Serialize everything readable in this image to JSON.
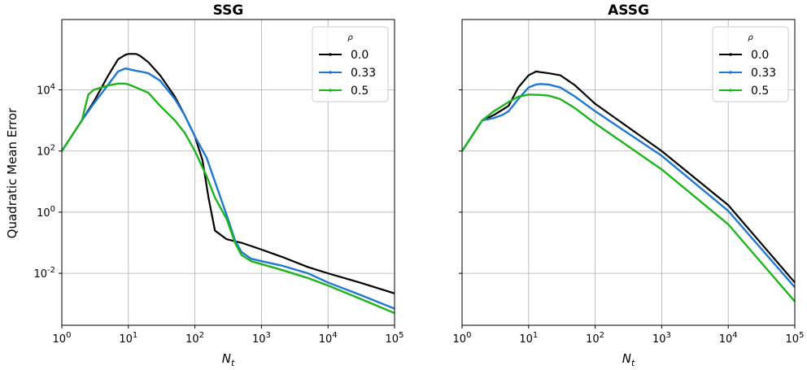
{
  "figure": {
    "ylabel": "Quadratic Mean Error",
    "xlabel": "N_t"
  },
  "colors": {
    "0.0": "#000000",
    "0.33": "#1f78d1",
    "0.5": "#1db51d"
  },
  "chart_data": [
    {
      "type": "line",
      "title": "SSG",
      "xlabel": "N_t",
      "ylabel": "Quadratic Mean Error",
      "xscale": "log",
      "yscale": "log",
      "xlim": [
        1,
        100000
      ],
      "ylim": [
        0.0002,
        2000000
      ],
      "x_ticks": [
        "10^0",
        "10^1",
        "10^2",
        "10^3",
        "10^4",
        "10^5"
      ],
      "y_ticks": [
        "10^-2",
        "10^0",
        "10^2",
        "10^4"
      ],
      "grid": true,
      "legend": {
        "title": "ρ",
        "position": "top-right"
      },
      "series": [
        {
          "name": "0.0",
          "x": [
            1,
            2,
            3,
            5,
            7,
            9,
            10,
            13,
            15,
            20,
            30,
            50,
            70,
            100,
            130,
            160,
            200,
            300,
            500,
            1000,
            2000,
            5000,
            10000,
            30000,
            100000
          ],
          "y": [
            100,
            1000,
            4000,
            30000,
            100000,
            140000,
            150000,
            150000,
            130000,
            80000,
            30000,
            6000,
            1500,
            300,
            50,
            3,
            0.25,
            0.13,
            0.1,
            0.06,
            0.035,
            0.016,
            0.01,
            0.005,
            0.0022
          ]
        },
        {
          "name": "0.33",
          "x": [
            1,
            2,
            3,
            5,
            7,
            9,
            10,
            13,
            15,
            20,
            30,
            50,
            70,
            100,
            150,
            200,
            300,
            400,
            500,
            700,
            1000,
            2000,
            5000,
            10000,
            30000,
            100000
          ],
          "y": [
            100,
            1000,
            3500,
            15000,
            40000,
            50000,
            48000,
            42000,
            40000,
            35000,
            20000,
            5000,
            1500,
            300,
            60,
            10,
            0.8,
            0.12,
            0.05,
            0.03,
            0.025,
            0.018,
            0.01,
            0.005,
            0.002,
            0.0007
          ]
        },
        {
          "name": "0.5",
          "x": [
            1,
            2,
            2.5,
            3,
            5,
            7,
            9,
            10,
            13,
            20,
            30,
            50,
            70,
            100,
            150,
            200,
            300,
            400,
            500,
            700,
            1000,
            2000,
            5000,
            10000,
            30000,
            100000
          ],
          "y": [
            100,
            1000,
            7000,
            10000,
            14000,
            16000,
            16000,
            15000,
            12000,
            8000,
            3000,
            1000,
            400,
            100,
            15,
            3,
            0.6,
            0.1,
            0.04,
            0.025,
            0.02,
            0.013,
            0.007,
            0.004,
            0.0015,
            0.0005
          ]
        }
      ]
    },
    {
      "type": "line",
      "title": "ASSG",
      "xlabel": "N_t",
      "ylabel": "",
      "xscale": "log",
      "yscale": "log",
      "xlim": [
        1,
        100000
      ],
      "ylim": [
        0.0002,
        2000000
      ],
      "x_ticks": [
        "10^0",
        "10^1",
        "10^2",
        "10^3",
        "10^4",
        "10^5"
      ],
      "y_ticks": [],
      "grid": true,
      "legend": {
        "title": "ρ",
        "position": "top-right"
      },
      "series": [
        {
          "name": "0.0",
          "x": [
            1,
            2,
            3,
            4,
            5,
            7,
            10,
            13,
            15,
            20,
            30,
            50,
            100,
            1000,
            10000,
            100000
          ],
          "y": [
            100,
            1000,
            1500,
            2200,
            3000,
            12000,
            30000,
            40000,
            38000,
            35000,
            30000,
            14000,
            3500,
            100,
            1.7,
            0.005
          ]
        },
        {
          "name": "0.33",
          "x": [
            1,
            2,
            3,
            4,
            5,
            7,
            10,
            13,
            15,
            20,
            30,
            50,
            100,
            1000,
            10000,
            100000
          ],
          "y": [
            100,
            1000,
            1200,
            1500,
            2000,
            5000,
            12000,
            15000,
            15500,
            15000,
            12000,
            6000,
            2000,
            70,
            1.1,
            0.0035
          ]
        },
        {
          "name": "0.5",
          "x": [
            1,
            2,
            3,
            5,
            7,
            10,
            15,
            20,
            30,
            50,
            100,
            1000,
            10000,
            100000
          ],
          "y": [
            100,
            1000,
            2000,
            4000,
            6000,
            7000,
            6800,
            6500,
            5000,
            2500,
            800,
            25,
            0.4,
            0.0012
          ]
        }
      ]
    }
  ]
}
